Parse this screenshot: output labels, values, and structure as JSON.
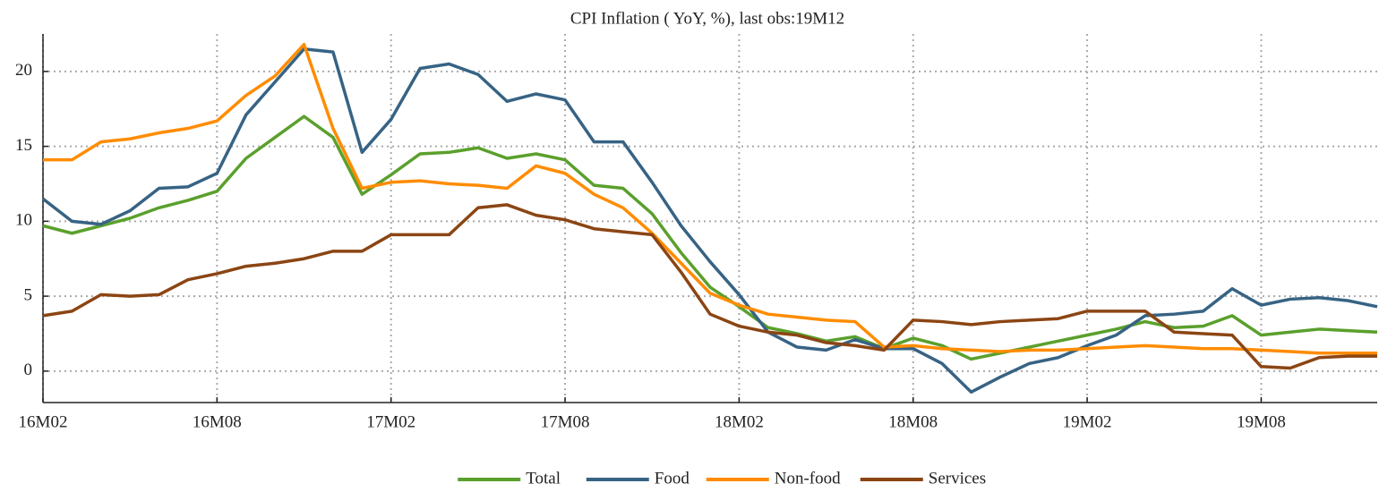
{
  "chart_data": {
    "type": "line",
    "title": "CPI Inflation ( YoY, %), last obs:19M12",
    "categories": [
      "16M02",
      null,
      null,
      null,
      null,
      null,
      "16M08",
      null,
      null,
      null,
      null,
      null,
      "17M02",
      null,
      null,
      null,
      null,
      null,
      "17M08",
      null,
      null,
      null,
      null,
      null,
      "18M02",
      null,
      null,
      null,
      null,
      null,
      "18M08",
      null,
      null,
      null,
      null,
      null,
      "19M02",
      null,
      null,
      null,
      null,
      null,
      "19M08",
      null,
      null,
      null,
      null
    ],
    "series": [
      {
        "name": "Total",
        "color": "#5aa02c",
        "values": [
          9.7,
          9.2,
          9.7,
          10.2,
          10.9,
          11.4,
          12.0,
          14.2,
          15.6,
          17.0,
          15.6,
          11.8,
          13.1,
          14.5,
          14.6,
          14.9,
          14.2,
          14.5,
          14.1,
          12.4,
          12.2,
          10.5,
          7.9,
          5.6,
          4.3,
          2.9,
          2.5,
          2.0,
          2.3,
          1.5,
          2.2,
          1.7,
          0.8,
          1.2,
          1.6,
          2.0,
          2.4,
          2.8,
          3.3,
          2.9,
          3.0,
          3.7,
          2.4,
          2.6,
          2.8,
          2.7,
          2.6
        ]
      },
      {
        "name": "Food",
        "color": "#376384",
        "values": [
          11.5,
          10.0,
          9.8,
          10.7,
          12.2,
          12.3,
          13.2,
          17.1,
          19.3,
          21.5,
          21.3,
          14.6,
          16.8,
          20.2,
          20.5,
          19.8,
          18.0,
          18.5,
          18.1,
          15.3,
          15.3,
          12.6,
          9.7,
          7.3,
          5.1,
          2.6,
          1.6,
          1.4,
          2.1,
          1.5,
          1.5,
          0.5,
          -1.4,
          -0.4,
          0.5,
          0.9,
          1.7,
          2.4,
          3.7,
          3.8,
          4.0,
          5.5,
          4.4,
          4.8,
          4.9,
          4.7,
          4.3
        ]
      },
      {
        "name": "Non-food",
        "color": "#ff8c00",
        "values": [
          14.1,
          14.1,
          15.3,
          15.5,
          15.9,
          16.2,
          16.7,
          18.4,
          19.7,
          21.8,
          16.2,
          12.2,
          12.6,
          12.7,
          12.5,
          12.4,
          12.2,
          13.7,
          13.2,
          11.8,
          10.9,
          9.2,
          7.2,
          5.2,
          4.4,
          3.8,
          3.6,
          3.4,
          3.3,
          1.6,
          1.7,
          1.5,
          1.4,
          1.3,
          1.4,
          1.4,
          1.5,
          1.6,
          1.7,
          1.6,
          1.5,
          1.5,
          1.4,
          1.3,
          1.2,
          1.2,
          1.2
        ]
      },
      {
        "name": "Services",
        "color": "#8b4513",
        "values": [
          3.7,
          4.0,
          5.1,
          5.0,
          5.1,
          6.1,
          6.5,
          7.0,
          7.2,
          7.5,
          8.0,
          8.0,
          9.1,
          9.1,
          9.1,
          10.9,
          11.1,
          10.4,
          10.1,
          9.5,
          9.3,
          9.1,
          6.6,
          3.8,
          3.0,
          2.6,
          2.4,
          1.9,
          1.7,
          1.4,
          3.4,
          3.3,
          3.1,
          3.3,
          3.4,
          3.5,
          4.0,
          4.0,
          4.0,
          2.6,
          2.5,
          2.4,
          0.3,
          0.2,
          0.9,
          1.0,
          1.0
        ]
      }
    ],
    "ylim": [
      -2.1,
      22.5
    ],
    "yticks": [
      0,
      5,
      10,
      15,
      20
    ],
    "grid": true,
    "legend": "bottom"
  }
}
